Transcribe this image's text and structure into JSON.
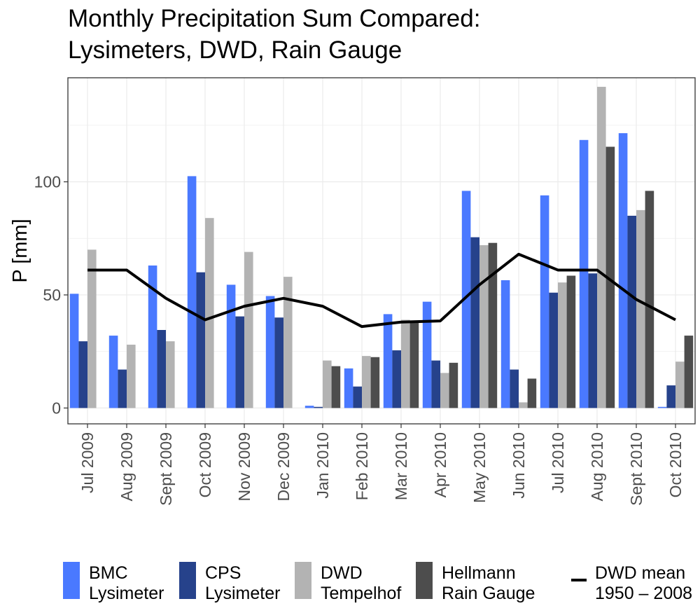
{
  "chart_data": {
    "type": "bar",
    "title": [
      "Monthly Precipitation Sum Compared:",
      "Lysimeters, DWD, Rain Gauge"
    ],
    "xlabel": "",
    "ylabel": "P [mm]",
    "ylim": [
      -7,
      146
    ],
    "yticks": [
      0,
      50,
      100
    ],
    "grid": true,
    "legend_position": "bottom",
    "categories": [
      "Jul 2009",
      "Aug 2009",
      "Sept 2009",
      "Oct 2009",
      "Nov 2009",
      "Dec 2009",
      "Jan 2010",
      "Feb 2010",
      "Mar 2010",
      "Apr 2010",
      "May 2010",
      "Jun 2010",
      "Jul 2010",
      "Aug 2010",
      "Sept 2010",
      "Oct 2010"
    ],
    "series": [
      {
        "key": "bmc",
        "name": [
          "BMC",
          "Lysimeter"
        ],
        "color": "#4a79ff",
        "values": [
          50.5,
          32,
          63,
          102.5,
          54.5,
          49.5,
          1,
          17.5,
          41.5,
          47,
          96,
          56.5,
          94,
          118.5,
          121.5,
          0.5
        ]
      },
      {
        "key": "cps",
        "name": [
          "CPS",
          "Lysimeter"
        ],
        "color": "#26428b",
        "values": [
          29.5,
          17,
          34.5,
          60,
          40.5,
          40,
          0.5,
          9.5,
          25.5,
          21,
          75.5,
          17,
          51,
          59.5,
          85,
          10
        ]
      },
      {
        "key": "dwd",
        "name": [
          "DWD",
          "Tempelhof"
        ],
        "color": "#b3b3b3",
        "values": [
          70,
          28,
          29.5,
          84,
          69,
          58,
          21,
          23,
          39,
          15.5,
          72,
          2.5,
          55.5,
          142,
          87.5,
          20.5
        ]
      },
      {
        "key": "hel",
        "name": [
          "Hellmann",
          "Rain Gauge"
        ],
        "color": "#4d4d4d",
        "values": [
          null,
          null,
          null,
          null,
          null,
          null,
          18.5,
          22.5,
          38,
          20,
          73,
          13,
          58.5,
          115.5,
          96,
          32
        ]
      }
    ],
    "line": {
      "name": [
        "DWD mean",
        "1950 – 2008"
      ],
      "color": "#000000",
      "values": [
        61,
        61,
        48.5,
        39,
        45,
        48.5,
        45,
        36,
        38,
        38.5,
        54.5,
        68,
        61,
        61,
        48,
        39
      ]
    }
  }
}
